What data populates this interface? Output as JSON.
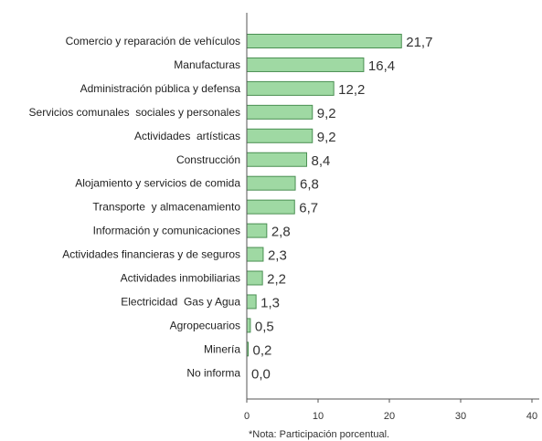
{
  "chart_data": {
    "type": "bar",
    "orientation": "horizontal",
    "categories": [
      "Comercio y reparación de vehículos",
      "Manufacturas",
      "Administración pública y defensa",
      "Servicios comunales  sociales y personales",
      "Actividades  artísticas",
      "Construcción",
      "Alojamiento y servicios de comida",
      "Transporte  y almacenamiento",
      "Información y comunicaciones",
      "Actividades financieras y de seguros",
      "Actividades inmobiliarias",
      "Electricidad  Gas y Agua",
      "Agropecuarios",
      "Minería",
      "No informa"
    ],
    "values": [
      21.7,
      16.4,
      12.2,
      9.2,
      9.2,
      8.4,
      6.8,
      6.7,
      2.8,
      2.3,
      2.2,
      1.3,
      0.5,
      0.2,
      0.0
    ],
    "value_labels": [
      "21,7",
      "16,4",
      "12,2",
      "9,2",
      "9,2",
      "8,4",
      "6,8",
      "6,7",
      "2,8",
      "2,3",
      "2,2",
      "1,3",
      "0,5",
      "0,2",
      "0,0"
    ],
    "xlim": [
      0,
      40
    ],
    "xticks": [
      0,
      10,
      20,
      30,
      40
    ],
    "grid": false,
    "legend": "none",
    "bar_color": "#9fd9a3",
    "bar_edge_color": "#4a8f52",
    "title": "",
    "xlabel": "",
    "ylabel": ""
  },
  "note": "*Nota: Participación porcentual."
}
